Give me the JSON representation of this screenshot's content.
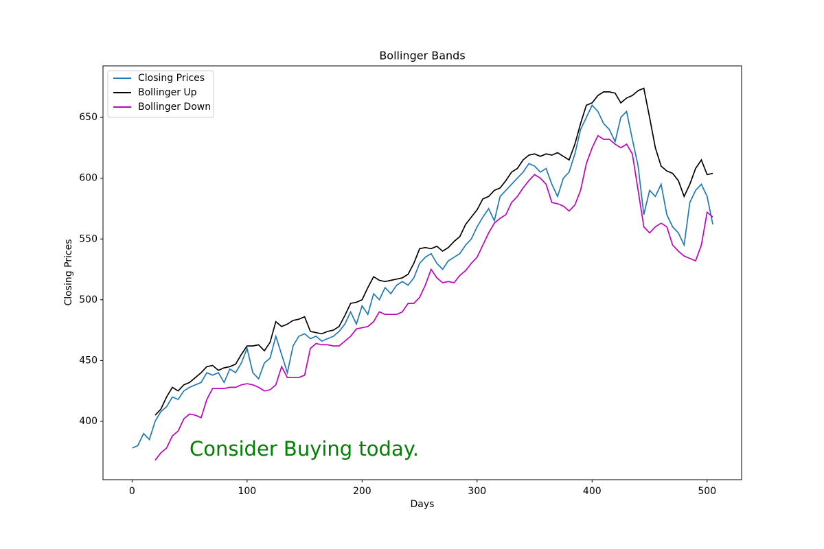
{
  "chart_data": {
    "type": "line",
    "title": "Bollinger Bands",
    "xlabel": "Days",
    "ylabel": "Closing Prices",
    "annotation": "Consider Buying today.",
    "annotation_color": "#008000",
    "x": [
      0,
      5,
      10,
      15,
      20,
      25,
      30,
      35,
      40,
      45,
      50,
      55,
      60,
      65,
      70,
      75,
      80,
      85,
      90,
      95,
      100,
      105,
      110,
      115,
      120,
      125,
      130,
      135,
      140,
      145,
      150,
      155,
      160,
      165,
      170,
      175,
      180,
      185,
      190,
      195,
      200,
      205,
      210,
      215,
      220,
      225,
      230,
      235,
      240,
      245,
      250,
      255,
      260,
      265,
      270,
      275,
      280,
      285,
      290,
      295,
      300,
      305,
      310,
      315,
      320,
      325,
      330,
      335,
      340,
      345,
      350,
      355,
      360,
      365,
      370,
      375,
      380,
      385,
      390,
      395,
      400,
      405,
      410,
      415,
      420,
      425,
      430,
      435,
      440,
      445,
      450,
      455,
      460,
      465,
      470,
      475,
      480,
      485,
      490,
      495,
      500,
      505
    ],
    "series": [
      {
        "name": "Closing Prices",
        "color": "#1f77b4",
        "values": [
          378,
          380,
          390,
          385,
          400,
          408,
          412,
          420,
          418,
          425,
          428,
          430,
          432,
          440,
          438,
          440,
          432,
          443,
          440,
          448,
          460,
          440,
          435,
          448,
          452,
          470,
          455,
          440,
          462,
          470,
          472,
          468,
          470,
          466,
          468,
          470,
          474,
          480,
          490,
          480,
          495,
          488,
          505,
          500,
          510,
          505,
          512,
          515,
          512,
          518,
          530,
          535,
          538,
          530,
          525,
          532,
          535,
          538,
          545,
          550,
          560,
          568,
          575,
          565,
          585,
          590,
          595,
          600,
          605,
          612,
          610,
          605,
          608,
          595,
          585,
          600,
          605,
          620,
          640,
          650,
          660,
          655,
          645,
          640,
          630,
          650,
          655,
          632,
          610,
          570,
          590,
          585,
          595,
          570,
          560,
          555,
          545,
          580,
          590,
          595,
          585,
          562
        ]
      },
      {
        "name": "Bollinger Up",
        "color": "#000000",
        "values": [
          null,
          null,
          null,
          null,
          405,
          410,
          420,
          428,
          425,
          430,
          432,
          436,
          440,
          445,
          446,
          442,
          444,
          445,
          447,
          455,
          462,
          462,
          463,
          458,
          465,
          482,
          478,
          480,
          483,
          484,
          486,
          474,
          473,
          472,
          474,
          475,
          478,
          487,
          497,
          498,
          500,
          510,
          519,
          516,
          515,
          516,
          517,
          518,
          521,
          530,
          542,
          543,
          542,
          544,
          540,
          543,
          548,
          552,
          562,
          568,
          574,
          583,
          585,
          590,
          592,
          598,
          605,
          608,
          615,
          619,
          620,
          618,
          620,
          619,
          621,
          618,
          615,
          628,
          645,
          660,
          662,
          668,
          671,
          671,
          670,
          662,
          666,
          668,
          672,
          674,
          650,
          625,
          610,
          606,
          604,
          598,
          585,
          595,
          608,
          615,
          603,
          604
        ]
      },
      {
        "name": "Bollinger Down",
        "color": "#bf00bf",
        "values": [
          null,
          null,
          null,
          null,
          368,
          374,
          378,
          388,
          392,
          402,
          406,
          405,
          403,
          418,
          427,
          427,
          427,
          428,
          428,
          430,
          431,
          430,
          428,
          425,
          426,
          430,
          445,
          436,
          436,
          436,
          438,
          460,
          464,
          463,
          463,
          462,
          462,
          466,
          470,
          476,
          477,
          478,
          482,
          490,
          488,
          488,
          488,
          490,
          497,
          497,
          502,
          512,
          525,
          518,
          514,
          515,
          514,
          520,
          524,
          530,
          535,
          545,
          555,
          563,
          567,
          570,
          580,
          585,
          592,
          598,
          603,
          600,
          595,
          580,
          579,
          577,
          573,
          578,
          590,
          612,
          625,
          635,
          632,
          632,
          628,
          625,
          628,
          620,
          590,
          560,
          555,
          560,
          563,
          560,
          545,
          540,
          536,
          534,
          532,
          545,
          572,
          568
        ]
      }
    ],
    "xlim": [
      -25.3,
      530
    ],
    "ylim": [
      352,
      692.4
    ],
    "xticks": [
      0,
      100,
      200,
      300,
      400,
      500
    ],
    "yticks": [
      400,
      450,
      500,
      550,
      600,
      650
    ],
    "legend": "upper left"
  }
}
